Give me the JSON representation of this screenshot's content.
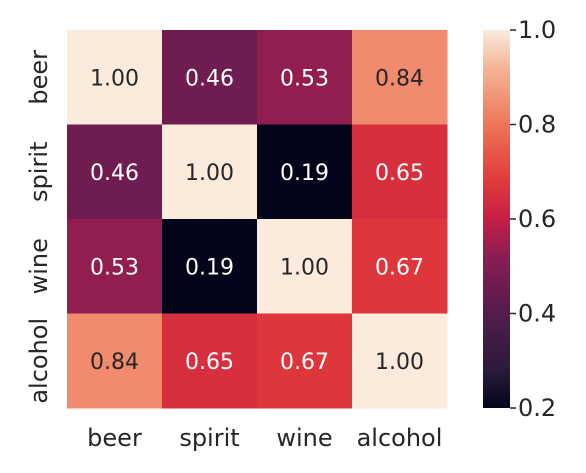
{
  "chart_data": {
    "type": "heatmap",
    "title": "",
    "xlabel": "",
    "ylabel": "",
    "x_categories": [
      "beer",
      "spirit",
      "wine",
      "alcohol"
    ],
    "y_categories": [
      "beer",
      "spirit",
      "wine",
      "alcohol"
    ],
    "values": [
      [
        1.0,
        0.46,
        0.53,
        0.84
      ],
      [
        0.46,
        1.0,
        0.19,
        0.65
      ],
      [
        0.53,
        0.19,
        1.0,
        0.67
      ],
      [
        0.84,
        0.65,
        0.67,
        1.0
      ]
    ],
    "annotation_format": "0.00",
    "colorbar": {
      "min": 0.2,
      "max": 1.0,
      "ticks": [
        0.2,
        0.4,
        0.6,
        0.8,
        1.0
      ],
      "tick_labels": [
        "0.2",
        "0.4",
        "0.6",
        "0.8",
        "1.0"
      ],
      "colormap": "rocket",
      "placement": "right"
    },
    "grid": false
  }
}
